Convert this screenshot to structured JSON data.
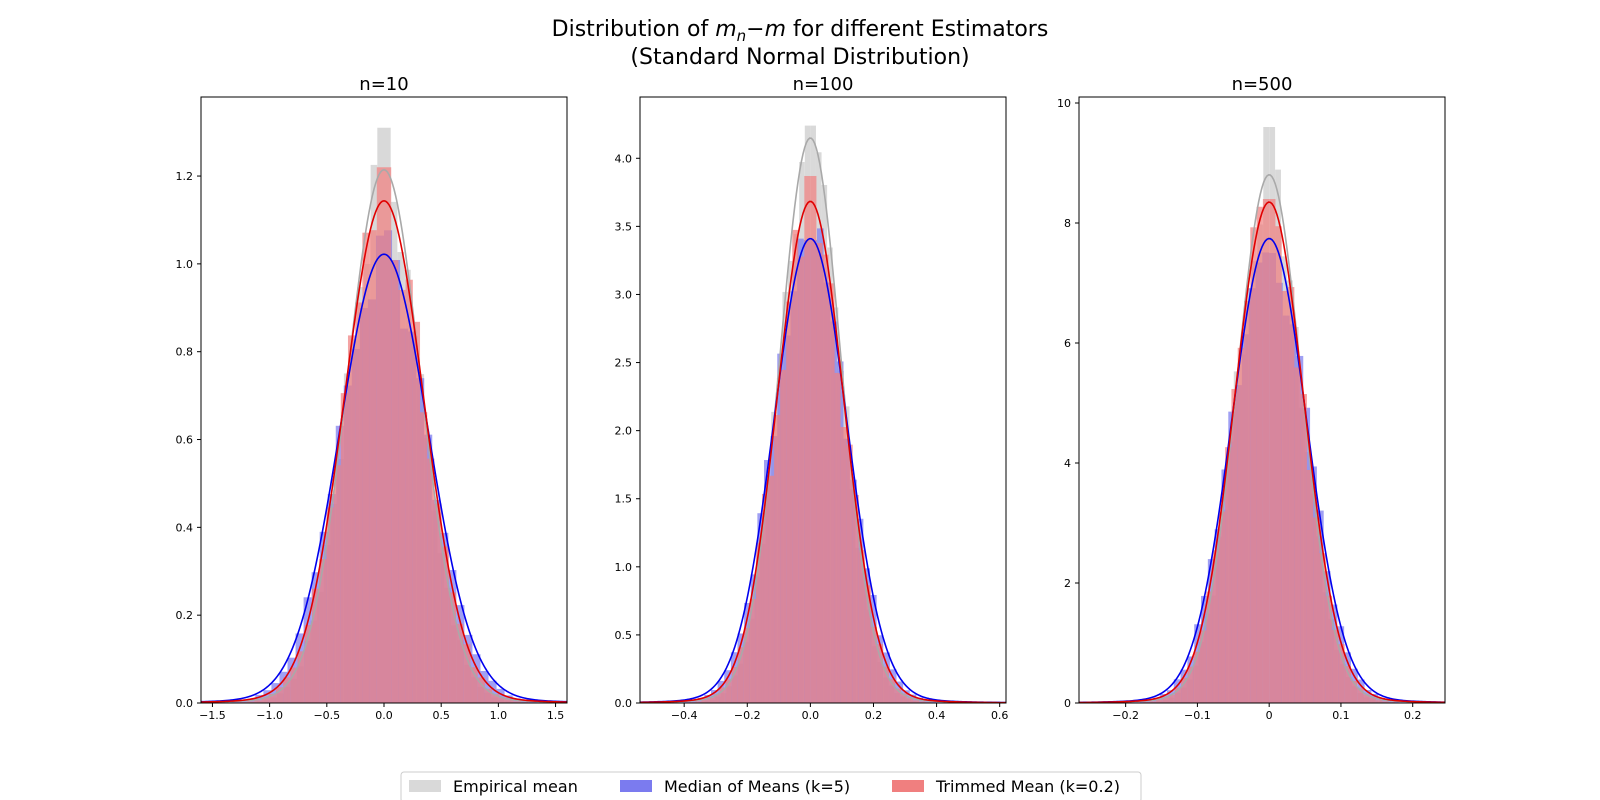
{
  "figure": {
    "title_prefix": "Distribution of ",
    "title_math_m": "m",
    "title_math_sub": "n",
    "title_math_rest": "−m",
    "title_suffix": " for different Estimators",
    "subtitle": "(Standard Normal Distribution)"
  },
  "colors": {
    "empirical_bar": "#d9d9d9",
    "empirical_line": "#a9a9a9",
    "median_bar": "#7b7bef",
    "median_line": "#0000ee",
    "trimmed_bar": "#f07f7f",
    "trimmed_line": "#e00000",
    "overlap_fill": "#b5518b"
  },
  "chart_data": [
    {
      "type": "histogram",
      "title": "n=10",
      "xlim": [
        -1.6,
        1.6
      ],
      "ylim": [
        0,
        1.38
      ],
      "xticks": [
        -1.5,
        -1.0,
        -0.5,
        0.0,
        0.5,
        1.0,
        1.5
      ],
      "xtick_labels": [
        "−1.5",
        "−1.0",
        "−0.5",
        "0.0",
        "0.5",
        "1.0",
        "1.5"
      ],
      "yticks": [
        0.0,
        0.2,
        0.4,
        0.6,
        0.8,
        1.0,
        1.2
      ],
      "ytick_labels": [
        "0.0",
        "0.2",
        "0.4",
        "0.6",
        "0.8",
        "1.0",
        "1.2"
      ],
      "series": [
        {
          "name": "Empirical mean",
          "kde_peak": 1.2,
          "sigma": 0.32,
          "hist_max": 1.31
        },
        {
          "name": "Median of Means (k=5)",
          "kde_peak": 1.01,
          "sigma": 0.385,
          "hist_max": 1.0
        },
        {
          "name": "Trimmed Mean (k=0.2)",
          "kde_peak": 1.13,
          "sigma": 0.345,
          "hist_max": 1.22
        }
      ]
    },
    {
      "type": "histogram",
      "title": "n=100",
      "xlim": [
        -0.54,
        0.62
      ],
      "ylim": [
        0,
        4.45
      ],
      "xticks": [
        -0.4,
        -0.2,
        0.0,
        0.2,
        0.4,
        0.6
      ],
      "xtick_labels": [
        "−0.4",
        "−0.2",
        "0.0",
        "0.2",
        "0.4",
        "0.6"
      ],
      "yticks": [
        0.0,
        0.5,
        1.0,
        1.5,
        2.0,
        2.5,
        3.0,
        3.5,
        4.0
      ],
      "ytick_labels": [
        "0.0",
        "0.5",
        "1.0",
        "1.5",
        "2.0",
        "2.5",
        "3.0",
        "3.5",
        "4.0"
      ],
      "series": [
        {
          "name": "Empirical mean",
          "kde_peak": 4.1,
          "sigma": 0.097,
          "hist_max": 4.24
        },
        {
          "name": "Median of Means (k=5)",
          "kde_peak": 3.37,
          "sigma": 0.115,
          "hist_max": 3.4
        },
        {
          "name": "Trimmed Mean (k=0.2)",
          "kde_peak": 3.64,
          "sigma": 0.105,
          "hist_max": 3.87
        }
      ]
    },
    {
      "type": "histogram",
      "title": "n=500",
      "xlim": [
        -0.265,
        0.245
      ],
      "ylim": [
        0,
        10.1
      ],
      "xticks": [
        -0.2,
        -0.1,
        0.0,
        0.1,
        0.2
      ],
      "xtick_labels": [
        "−0.2",
        "−0.1",
        "0",
        "0.1",
        "0.2"
      ],
      "yticks": [
        0,
        2,
        4,
        6,
        8,
        10
      ],
      "ytick_labels": [
        "0",
        "2",
        "4",
        "6",
        "8",
        "10"
      ],
      "series": [
        {
          "name": "Empirical mean",
          "kde_peak": 8.7,
          "sigma": 0.045,
          "hist_max": 9.6
        },
        {
          "name": "Median of Means (k=5)",
          "kde_peak": 7.65,
          "sigma": 0.052,
          "hist_max": 7.5
        },
        {
          "name": "Trimmed Mean (k=0.2)",
          "kde_peak": 8.25,
          "sigma": 0.048,
          "hist_max": 8.4
        }
      ]
    }
  ],
  "legend": {
    "placement": "bottom-center",
    "items": [
      {
        "label": "Empirical mean",
        "color_key": "empirical_bar"
      },
      {
        "label": "Median of Means (k=5)",
        "color_key": "median_bar"
      },
      {
        "label": "Trimmed Mean (k=0.2)",
        "color_key": "trimmed_bar"
      }
    ]
  }
}
